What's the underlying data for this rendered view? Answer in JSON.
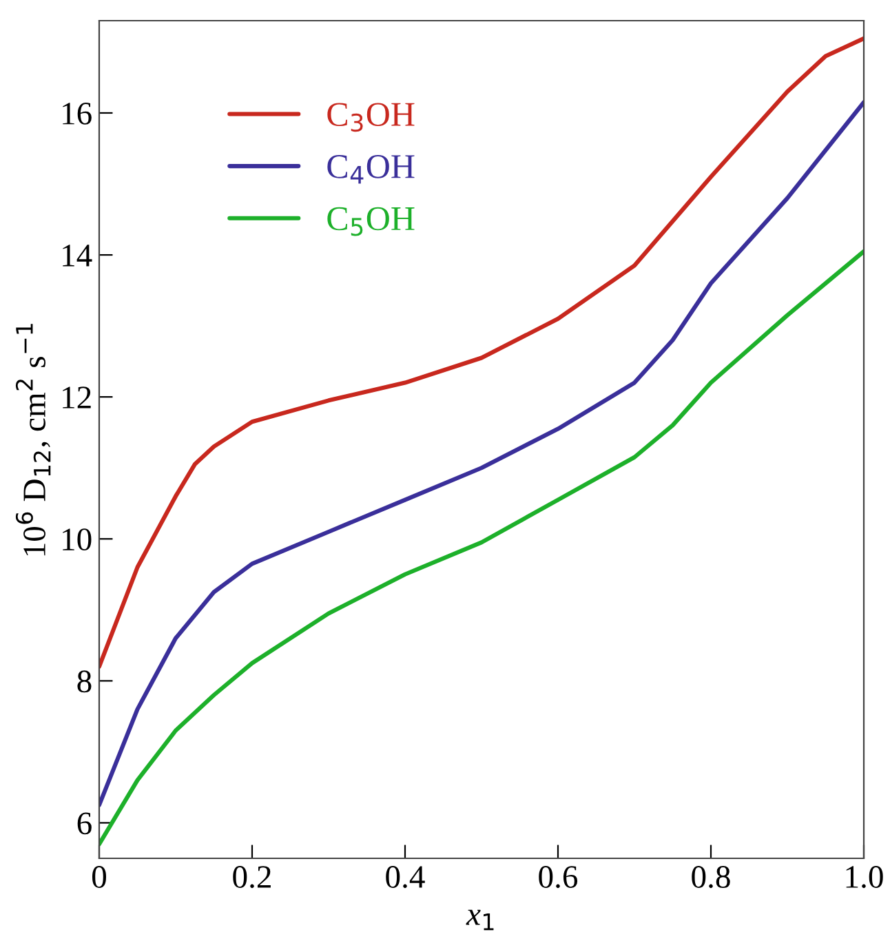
{
  "chart_data": {
    "type": "line",
    "xlabel": "x$_{1}$",
    "ylabel": "10$^{6}$ D$_{12}$, cm$^{2}$ s$^{−1}$",
    "xlim": [
      0,
      1.0
    ],
    "ylim": [
      5.5,
      17.3
    ],
    "xticks": [
      0,
      0.2,
      0.4,
      0.6,
      0.8,
      {
        "value": 1.0,
        "label": "1.0"
      }
    ],
    "yticks": [
      6,
      8,
      10,
      12,
      14,
      16
    ],
    "grid": false,
    "legend": "top left",
    "marker": "none",
    "line_style": "solid",
    "x": [
      0,
      0.05,
      0.1,
      0.125,
      0.15,
      0.2,
      0.3,
      0.4,
      0.5,
      0.6,
      0.7,
      0.8,
      0.9,
      0.95,
      1.0
    ],
    "series": [
      {
        "name": "C$_{3}$OH",
        "color": "#c8281e",
        "values": [
          8.2,
          9.6,
          10.6,
          11.05,
          11.3,
          11.65,
          11.95,
          12.2,
          12.55,
          13.1,
          13.85,
          15.1,
          16.3,
          16.8,
          17.05
        ]
      },
      {
        "name": "C$_{4}$OH",
        "color": "#3a2f9a",
        "x": [
          0,
          0.05,
          0.1,
          0.15,
          0.2,
          0.3,
          0.4,
          0.5,
          0.6,
          0.7,
          0.75,
          0.8,
          0.9,
          1.0
        ],
        "values": [
          6.25,
          7.6,
          8.6,
          9.25,
          9.65,
          10.1,
          10.55,
          11.0,
          11.55,
          12.2,
          12.8,
          13.6,
          14.8,
          16.15
        ]
      },
      {
        "name": "C$_{5}$OH",
        "color": "#1db02a",
        "x": [
          0,
          0.05,
          0.1,
          0.15,
          0.2,
          0.3,
          0.4,
          0.5,
          0.6,
          0.7,
          0.75,
          0.8,
          0.9,
          1.0
        ],
        "values": [
          5.7,
          6.6,
          7.3,
          7.8,
          8.25,
          8.95,
          9.5,
          9.95,
          10.55,
          11.15,
          11.6,
          12.2,
          13.15,
          14.05
        ]
      }
    ]
  }
}
